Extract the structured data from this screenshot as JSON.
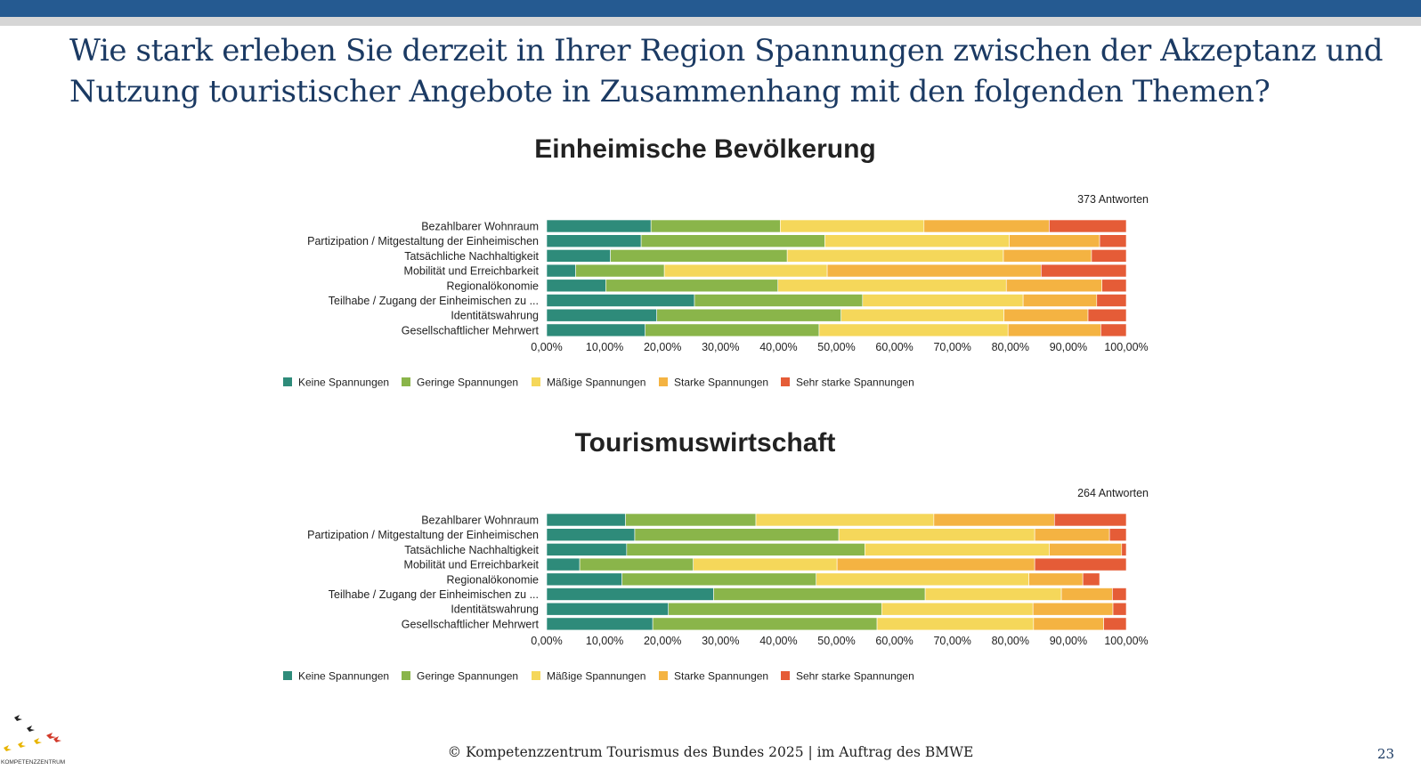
{
  "slide": {
    "title": "Wie stark erleben Sie derzeit in Ihrer Region Spannungen zwischen der Akzeptanz und Nutzung touristischer Angebote in Zusammenhang mit den folgenden Themen?",
    "footer": "© Kompetenzzentrum Tourismus des Bundes 2025 | im Auftrag des BMWE",
    "page_number": "23",
    "logo_text": "KOMPETENZZENTRUM"
  },
  "colors": {
    "top_bar": "#255a91",
    "top_bar_secondary": "#d6d6d6",
    "title_text": "#1b3a63"
  },
  "chart_data": [
    {
      "type": "bar",
      "orientation": "horizontal",
      "stacked": true,
      "title": "Einheimische Bevölkerung",
      "responses": "373 Antworten",
      "categories": [
        "Bezahlbarer Wohnraum",
        "Partizipation / Mitgestaltung der Einheimischen",
        "Tatsächliche Nachhaltigkeit",
        "Mobilität und Erreichbarkeit",
        "Regionalökonomie",
        "Teilhabe / Zugang der Einheimischen zu ...",
        "Identitätswahrung",
        "Gesellschaftlicher Mehrwert"
      ],
      "series": [
        {
          "name": "Keine Spannungen",
          "color": "#2e8b7a",
          "values": [
            18,
            16.3,
            11,
            5,
            10.2,
            25.5,
            19,
            17
          ]
        },
        {
          "name": "Geringe Spannungen",
          "color": "#8ab54a",
          "values": [
            22.3,
            31.7,
            30.5,
            15.3,
            29.7,
            29,
            31.8,
            30
          ]
        },
        {
          "name": "Mäßige Spannungen",
          "color": "#f5d75a",
          "values": [
            24.8,
            31.8,
            37.3,
            28.1,
            39.4,
            27.7,
            28.1,
            32.6
          ]
        },
        {
          "name": "Starke Spannungen",
          "color": "#f4b342",
          "values": [
            21.6,
            15.6,
            15.2,
            36.9,
            16.5,
            12.7,
            14.5,
            16
          ]
        },
        {
          "name": "Sehr starke Spannungen",
          "color": "#e55c37",
          "values": [
            13.3,
            4.6,
            6,
            14.7,
            4.2,
            5.1,
            6.6,
            4.4
          ]
        }
      ],
      "xlim": [
        0,
        100
      ],
      "x_ticks": [
        "0,00%",
        "10,00%",
        "20,00%",
        "30,00%",
        "40,00%",
        "50,00%",
        "60,00%",
        "70,00%",
        "80,00%",
        "90,00%",
        "100,00%"
      ]
    },
    {
      "type": "bar",
      "orientation": "horizontal",
      "stacked": true,
      "title": "Tourismuswirtschaft",
      "responses": "264 Antworten",
      "categories": [
        "Bezahlbarer Wohnraum",
        "Partizipation / Mitgestaltung der Einheimischen",
        "Tatsächliche Nachhaltigkeit",
        "Mobilität und Erreichbarkeit",
        "Regionalökonomie",
        "Teilhabe / Zugang der Einheimischen zu ...",
        "Identitätswahrung",
        "Gesellschaftlicher Mehrwert"
      ],
      "series": [
        {
          "name": "Keine Spannungen",
          "color": "#2e8b7a",
          "values": [
            13.6,
            15.2,
            13.8,
            5.7,
            13,
            28.8,
            21,
            18.3
          ]
        },
        {
          "name": "Geringe Spannungen",
          "color": "#8ab54a",
          "values": [
            22.5,
            35.2,
            41.1,
            19.6,
            33.5,
            36.5,
            36.8,
            38.7
          ]
        },
        {
          "name": "Mäßige Spannungen",
          "color": "#f5d75a",
          "values": [
            30.7,
            33.8,
            31.8,
            24.8,
            36.7,
            23.5,
            26.1,
            27
          ]
        },
        {
          "name": "Starke Spannungen",
          "color": "#f4b342",
          "values": [
            20.8,
            12.9,
            12.5,
            34.1,
            9.3,
            8.8,
            13.8,
            12.1
          ]
        },
        {
          "name": "Sehr starke Spannungen",
          "color": "#e55c37",
          "values": [
            12.4,
            2.9,
            0.8,
            15.8,
            2.9,
            2.4,
            2.3,
            3.9
          ]
        }
      ],
      "xlim": [
        0,
        100
      ],
      "x_ticks": [
        "0,00%",
        "10,00%",
        "20,00%",
        "30,00%",
        "40,00%",
        "50,00%",
        "60,00%",
        "70,00%",
        "80,00%",
        "90,00%",
        "100,00%"
      ]
    }
  ]
}
